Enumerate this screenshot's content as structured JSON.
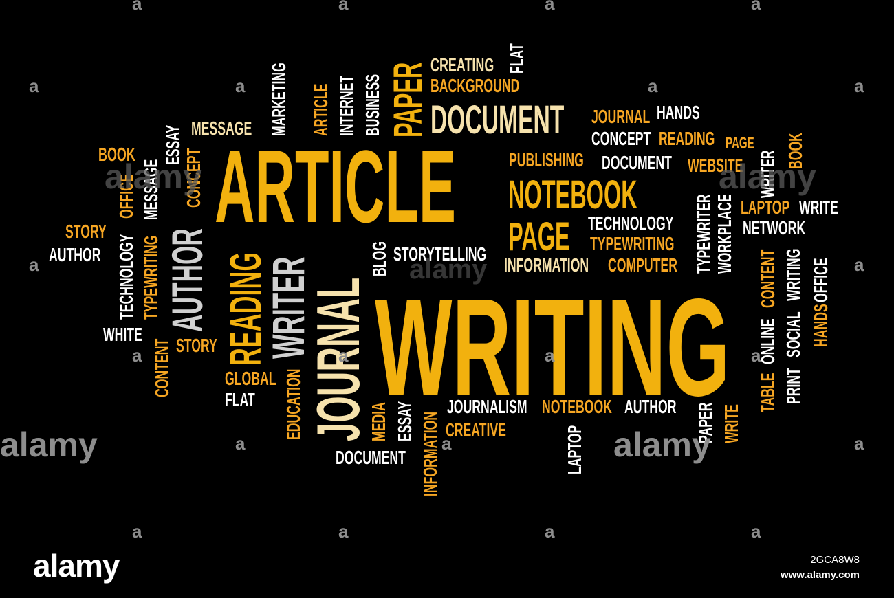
{
  "colors": {
    "background": "#000000",
    "gold": "#f2b10e",
    "amber": "#f6a623",
    "cream": "#f6e2ad",
    "white": "#ffffff",
    "gray": "#d0d0d0",
    "watermark": "#8d8d8d"
  },
  "words": [
    {
      "id": "article-main",
      "text": "ARTICLE",
      "color": "gold",
      "orientation": "horizontal"
    },
    {
      "id": "writing-main",
      "text": "WRITING",
      "color": "gold",
      "orientation": "horizontal"
    },
    {
      "id": "journal-main",
      "text": "JOURNAL",
      "color": "cream",
      "orientation": "vertical"
    },
    {
      "id": "writer-main",
      "text": "WRITER",
      "color": "gray",
      "orientation": "vertical"
    },
    {
      "id": "reading-main",
      "text": "READING",
      "color": "gold",
      "orientation": "vertical"
    },
    {
      "id": "author-main",
      "text": "AUTHOR",
      "color": "gray",
      "orientation": "vertical"
    },
    {
      "id": "document-main",
      "text": "DOCUMENT",
      "color": "cream",
      "orientation": "horizontal"
    },
    {
      "id": "paper-main",
      "text": "PAPER",
      "color": "gold",
      "orientation": "vertical"
    },
    {
      "id": "notebook-main",
      "text": "NOTEBOOK",
      "color": "gold",
      "orientation": "horizontal"
    },
    {
      "id": "page-main",
      "text": "PAGE",
      "color": "gold",
      "orientation": "horizontal"
    },
    {
      "id": "creating",
      "text": "CREATING",
      "color": "cream",
      "orientation": "horizontal"
    },
    {
      "id": "background",
      "text": "BACKGROUND",
      "color": "amber",
      "orientation": "horizontal"
    },
    {
      "id": "flat-top",
      "text": "FLAT",
      "color": "white",
      "orientation": "vertical"
    },
    {
      "id": "business",
      "text": "BUSINESS",
      "color": "white",
      "orientation": "vertical"
    },
    {
      "id": "internet",
      "text": "INTERNET",
      "color": "white",
      "orientation": "vertical"
    },
    {
      "id": "article-small",
      "text": "ARTICLE",
      "color": "amber",
      "orientation": "vertical"
    },
    {
      "id": "marketing",
      "text": "MARKETING",
      "color": "white",
      "orientation": "vertical"
    },
    {
      "id": "message-top",
      "text": "MESSAGE",
      "color": "cream",
      "orientation": "horizontal"
    },
    {
      "id": "essay-left",
      "text": "ESSAY",
      "color": "white",
      "orientation": "vertical"
    },
    {
      "id": "concept-left",
      "text": "CONCEPT",
      "color": "amber",
      "orientation": "vertical"
    },
    {
      "id": "book-left",
      "text": "BOOK",
      "color": "amber",
      "orientation": "horizontal"
    },
    {
      "id": "message-left",
      "text": "MESSAGE",
      "color": "white",
      "orientation": "vertical"
    },
    {
      "id": "office-left",
      "text": "OFFICE",
      "color": "amber",
      "orientation": "vertical"
    },
    {
      "id": "typewriting-left",
      "text": "TYPEWRITING",
      "color": "amber",
      "orientation": "vertical"
    },
    {
      "id": "technology-left",
      "text": "TECHNOLOGY",
      "color": "white",
      "orientation": "vertical"
    },
    {
      "id": "story-left",
      "text": "STORY",
      "color": "amber",
      "orientation": "horizontal"
    },
    {
      "id": "author-left",
      "text": "AUTHOR",
      "color": "white",
      "orientation": "horizontal"
    },
    {
      "id": "white",
      "text": "WHITE",
      "color": "white",
      "orientation": "horizontal"
    },
    {
      "id": "content-left",
      "text": "CONTENT",
      "color": "amber",
      "orientation": "vertical"
    },
    {
      "id": "story-mid",
      "text": "STORY",
      "color": "amber",
      "orientation": "horizontal"
    },
    {
      "id": "global",
      "text": "GLOBAL",
      "color": "amber",
      "orientation": "horizontal"
    },
    {
      "id": "flat-bottom",
      "text": "FLAT",
      "color": "white",
      "orientation": "horizontal"
    },
    {
      "id": "education",
      "text": "EDUCATION",
      "color": "amber",
      "orientation": "vertical"
    },
    {
      "id": "blog",
      "text": "BLOG",
      "color": "white",
      "orientation": "vertical"
    },
    {
      "id": "storytelling",
      "text": "STORYTELLING",
      "color": "white",
      "orientation": "horizontal"
    },
    {
      "id": "journal-small",
      "text": "JOURNAL",
      "color": "amber",
      "orientation": "horizontal"
    },
    {
      "id": "hands-top",
      "text": "HANDS",
      "color": "white",
      "orientation": "horizontal"
    },
    {
      "id": "concept-right",
      "text": "CONCEPT",
      "color": "white",
      "orientation": "horizontal"
    },
    {
      "id": "reading-small",
      "text": "READING",
      "color": "amber",
      "orientation": "horizontal"
    },
    {
      "id": "page-small",
      "text": "PAGE",
      "color": "amber",
      "orientation": "horizontal"
    },
    {
      "id": "publishing",
      "text": "PUBLISHING",
      "color": "amber",
      "orientation": "horizontal"
    },
    {
      "id": "document-small",
      "text": "DOCUMENT",
      "color": "white",
      "orientation": "horizontal"
    },
    {
      "id": "website",
      "text": "WEBSITE",
      "color": "amber",
      "orientation": "horizontal"
    },
    {
      "id": "writer-right",
      "text": "WRITER",
      "color": "white",
      "orientation": "vertical"
    },
    {
      "id": "book-right",
      "text": "BOOK",
      "color": "amber",
      "orientation": "vertical"
    },
    {
      "id": "laptop-right",
      "text": "LAPTOP",
      "color": "amber",
      "orientation": "horizontal"
    },
    {
      "id": "write-right",
      "text": "WRITE",
      "color": "white",
      "orientation": "horizontal"
    },
    {
      "id": "network",
      "text": "NETWORK",
      "color": "white",
      "orientation": "horizontal"
    },
    {
      "id": "technology-mid",
      "text": "TECHNOLOGY",
      "color": "white",
      "orientation": "horizontal"
    },
    {
      "id": "typewriting-mid",
      "text": "TYPEWRITING",
      "color": "amber",
      "orientation": "horizontal"
    },
    {
      "id": "information-mid",
      "text": "INFORMATION",
      "color": "cream",
      "orientation": "horizontal"
    },
    {
      "id": "computer",
      "text": "COMPUTER",
      "color": "amber",
      "orientation": "horizontal"
    },
    {
      "id": "typewriter",
      "text": "TYPEWRITER",
      "color": "white",
      "orientation": "vertical"
    },
    {
      "id": "workplace",
      "text": "WORKPLACE",
      "color": "white",
      "orientation": "vertical"
    },
    {
      "id": "table",
      "text": "TABLE",
      "color": "amber",
      "orientation": "vertical"
    },
    {
      "id": "online",
      "text": "ONLINE",
      "color": "white",
      "orientation": "vertical"
    },
    {
      "id": "content-right",
      "text": "CONTENT",
      "color": "amber",
      "orientation": "vertical"
    },
    {
      "id": "print",
      "text": "PRINT",
      "color": "white",
      "orientation": "vertical"
    },
    {
      "id": "social",
      "text": "SOCIAL",
      "color": "white",
      "orientation": "vertical"
    },
    {
      "id": "writing-right",
      "text": "WRITING",
      "color": "white",
      "orientation": "vertical"
    },
    {
      "id": "hands-right",
      "text": "HANDS",
      "color": "amber",
      "orientation": "vertical"
    },
    {
      "id": "office-right",
      "text": "OFFICE",
      "color": "white",
      "orientation": "vertical"
    },
    {
      "id": "media",
      "text": "MEDIA",
      "color": "amber",
      "orientation": "vertical"
    },
    {
      "id": "essay-bottom",
      "text": "ESSAY",
      "color": "white",
      "orientation": "vertical"
    },
    {
      "id": "information-bottom",
      "text": "INFORMATION",
      "color": "amber",
      "orientation": "vertical"
    },
    {
      "id": "journalism",
      "text": "JOURNALISM",
      "color": "white",
      "orientation": "horizontal"
    },
    {
      "id": "notebook-small",
      "text": "NOTEBOOK",
      "color": "amber",
      "orientation": "horizontal"
    },
    {
      "id": "author-bottom",
      "text": "AUTHOR",
      "color": "white",
      "orientation": "horizontal"
    },
    {
      "id": "creative",
      "text": "CREATIVE",
      "color": "amber",
      "orientation": "horizontal"
    },
    {
      "id": "document-bottom",
      "text": "DOCUMENT",
      "color": "white",
      "orientation": "horizontal"
    },
    {
      "id": "laptop-bottom",
      "text": "LAPTOP",
      "color": "white",
      "orientation": "vertical"
    },
    {
      "id": "paper-bottom",
      "text": "PAPER",
      "color": "white",
      "orientation": "vertical"
    },
    {
      "id": "write-bottom",
      "text": "WRITE",
      "color": "amber",
      "orientation": "vertical"
    }
  ],
  "watermark": {
    "text": "alamy",
    "mark": "a"
  },
  "footer": {
    "logo": "alamy",
    "image_id": "2GCA8W8",
    "url": "www.alamy.com"
  }
}
